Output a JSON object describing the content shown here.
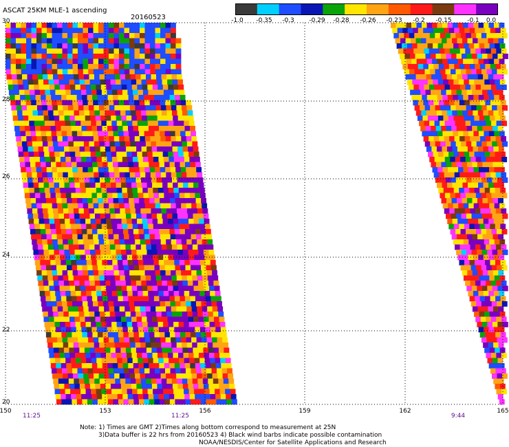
{
  "header": {
    "title": "ASCAT 25KM MLE-1 ascending",
    "date": "20160523"
  },
  "colorbar": {
    "colors": [
      "#3a3a3a",
      "#00cfff",
      "#1f4dff",
      "#0a16b3",
      "#0aa30a",
      "#ffe600",
      "#ffa514",
      "#ff5a00",
      "#ff1a1a",
      "#7a3a10",
      "#ff33ff",
      "#7a00bf"
    ],
    "labels": [
      "-1.0",
      "-0.35",
      "-0.3",
      "-0.29",
      "-0.28",
      "-0.26",
      "-0.23",
      "-0.2",
      "-0.15",
      "-0.1",
      "0.0"
    ]
  },
  "map": {
    "lat_labels": [
      "30",
      "28",
      "26",
      "24",
      "22",
      "20"
    ],
    "lon_labels": [
      "150",
      "153",
      "156",
      "159",
      "162",
      "165"
    ],
    "time_labels": [
      "11:25",
      "11:25",
      "9:44"
    ]
  },
  "notes": {
    "line1": "Note: 1) Times are GMT 2)Times along bottom correspond to measurement at 25N",
    "line2": "3)Data buffer is 22 hrs from 20160523 4) Black wind barbs indicate possible contamination",
    "line3": "NOAA/NESDIS/Center for Satellite Applications and Research"
  }
}
